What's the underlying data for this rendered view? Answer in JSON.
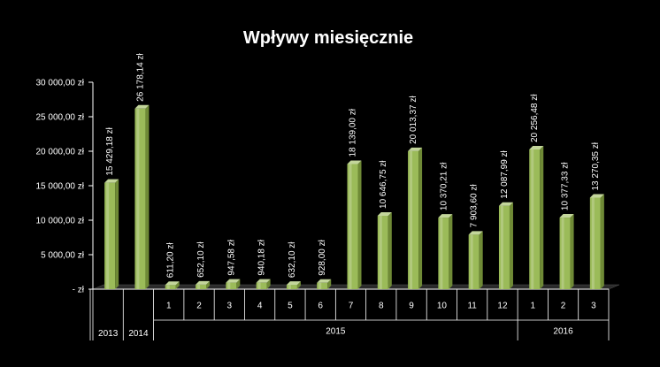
{
  "chart_data": {
    "type": "bar",
    "title": "Wpływy miesięcznie",
    "ylim": [
      0,
      30000
    ],
    "y_ticks": [
      {
        "value": 0,
        "label": "-   zł"
      },
      {
        "value": 5000,
        "label": "5 000,00 zł"
      },
      {
        "value": 10000,
        "label": "10 000,00 zł"
      },
      {
        "value": 15000,
        "label": "15 000,00 zł"
      },
      {
        "value": 20000,
        "label": "20 000,00 zł"
      },
      {
        "value": 25000,
        "label": "25 000,00 zł"
      },
      {
        "value": 30000,
        "label": "30 000,00 zł"
      }
    ],
    "categories": [
      "2013",
      "2014",
      "1",
      "2",
      "3",
      "4",
      "5",
      "6",
      "7",
      "8",
      "9",
      "10",
      "11",
      "12",
      "1",
      "2",
      "3"
    ],
    "values": [
      15429.18,
      26178.14,
      611.2,
      652.1,
      947.58,
      940.18,
      632.1,
      928.0,
      18139.0,
      10646.75,
      20013.37,
      10370.21,
      7903.6,
      12087.99,
      20256.48,
      10377.33,
      13270.35
    ],
    "data_labels": [
      "15 429,18 zł",
      "26 178,14 zł",
      "611,20 zł",
      "652,10 zł",
      "947,58 zł",
      "940,18 zł",
      "632,10 zł",
      "928,00 zł",
      "18 139,00 zł",
      "10 646,75 zł",
      "20 013,37 zł",
      "10 370,21 zł",
      "7 903,60 zł",
      "12 087,99 zł",
      "20 256,48 zł",
      "10 377,33 zł",
      "13 270,35 zł"
    ],
    "groups": [
      {
        "label": "2013",
        "from": 0,
        "to": 0
      },
      {
        "label": "2014",
        "from": 1,
        "to": 1
      },
      {
        "label": "2015",
        "from": 2,
        "to": 13
      },
      {
        "label": "2016",
        "from": 14,
        "to": 16
      }
    ],
    "grid": false,
    "colors": {
      "bar": "#9bbb59",
      "bar_light": "#c3d69b",
      "bar_dark": "#6f8a36",
      "floor": "#2a2a2a",
      "axis": "#ffffff"
    }
  }
}
